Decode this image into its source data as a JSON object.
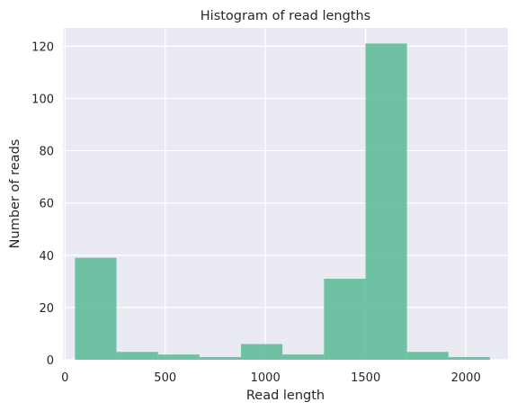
{
  "chart_data": {
    "type": "bar",
    "title": "Histogram of read lengths",
    "xlabel": "Read length",
    "ylabel": "Number of reads",
    "xlim": [
      -10,
      2210
    ],
    "ylim": [
      0,
      127
    ],
    "x_ticks": [
      0,
      500,
      1000,
      1500,
      2000
    ],
    "y_ticks": [
      0,
      20,
      40,
      60,
      80,
      100,
      120
    ],
    "grid": true,
    "bar_color": "#5dbb99",
    "background_color": "#eaeaf2",
    "bins": [
      {
        "start": 50,
        "end": 257,
        "count": 39
      },
      {
        "start": 257,
        "end": 464,
        "count": 3
      },
      {
        "start": 464,
        "end": 671,
        "count": 2
      },
      {
        "start": 671,
        "end": 878,
        "count": 1
      },
      {
        "start": 878,
        "end": 1085,
        "count": 6
      },
      {
        "start": 1085,
        "end": 1292,
        "count": 2
      },
      {
        "start": 1292,
        "end": 1499,
        "count": 31
      },
      {
        "start": 1499,
        "end": 1706,
        "count": 121
      },
      {
        "start": 1706,
        "end": 1913,
        "count": 3
      },
      {
        "start": 1913,
        "end": 2120,
        "count": 1
      }
    ]
  }
}
